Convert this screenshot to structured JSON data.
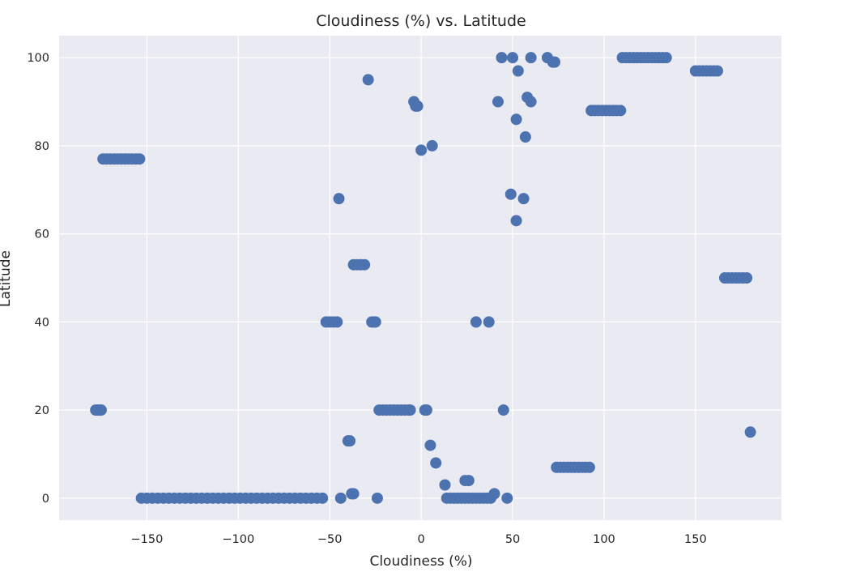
{
  "chart_data": {
    "type": "scatter",
    "title": "Cloudiness (%) vs. Latitude",
    "xlabel": "Cloudiness (%)",
    "ylabel": "Latitude",
    "xlim": [
      -198,
      197
    ],
    "ylim": [
      -5,
      105
    ],
    "xticks": [
      -150,
      -100,
      -50,
      0,
      50,
      100,
      150
    ],
    "xtick_labels": [
      "−150",
      "−100",
      "−50",
      "0",
      "50",
      "100",
      "150"
    ],
    "yticks": [
      0,
      20,
      40,
      60,
      80,
      100
    ],
    "ytick_labels": [
      "0",
      "20",
      "40",
      "60",
      "80",
      "100"
    ],
    "grid": true,
    "colors": {
      "point": "#4c72b0",
      "plot_bg": "#eaeaf2",
      "grid": "#ffffff"
    },
    "series": [
      {
        "points": [
          [
            -178,
            20
          ],
          [
            -177,
            20
          ],
          [
            -176,
            20
          ],
          [
            -175,
            20
          ],
          [
            -174,
            77
          ],
          [
            -172,
            77
          ],
          [
            -170,
            77
          ],
          [
            -168,
            77
          ],
          [
            -166,
            77
          ],
          [
            -164,
            77
          ],
          [
            -162,
            77
          ],
          [
            -160,
            77
          ],
          [
            -158,
            77
          ],
          [
            -156,
            77
          ],
          [
            -154,
            77
          ],
          [
            -153,
            0
          ],
          [
            -150,
            0
          ],
          [
            -147,
            0
          ],
          [
            -144,
            0
          ],
          [
            -141,
            0
          ],
          [
            -138,
            0
          ],
          [
            -135,
            0
          ],
          [
            -132,
            0
          ],
          [
            -129,
            0
          ],
          [
            -126,
            0
          ],
          [
            -123,
            0
          ],
          [
            -120,
            0
          ],
          [
            -117,
            0
          ],
          [
            -114,
            0
          ],
          [
            -111,
            0
          ],
          [
            -108,
            0
          ],
          [
            -105,
            0
          ],
          [
            -102,
            0
          ],
          [
            -99,
            0
          ],
          [
            -96,
            0
          ],
          [
            -93,
            0
          ],
          [
            -90,
            0
          ],
          [
            -87,
            0
          ],
          [
            -84,
            0
          ],
          [
            -81,
            0
          ],
          [
            -78,
            0
          ],
          [
            -75,
            0
          ],
          [
            -72,
            0
          ],
          [
            -69,
            0
          ],
          [
            -66,
            0
          ],
          [
            -63,
            0
          ],
          [
            -60,
            0
          ],
          [
            -57,
            0
          ],
          [
            -54,
            0
          ],
          [
            -52,
            40
          ],
          [
            -50,
            40
          ],
          [
            -48,
            40
          ],
          [
            -46,
            40
          ],
          [
            -45,
            68
          ],
          [
            -44,
            0
          ],
          [
            -40,
            13
          ],
          [
            -39,
            13
          ],
          [
            -38,
            1
          ],
          [
            -37,
            1
          ],
          [
            -37,
            53
          ],
          [
            -35,
            53
          ],
          [
            -33,
            53
          ],
          [
            -31,
            53
          ],
          [
            -29,
            95
          ],
          [
            -27,
            40
          ],
          [
            -26,
            40
          ],
          [
            -25,
            40
          ],
          [
            -24,
            0
          ],
          [
            -23,
            20
          ],
          [
            -21,
            20
          ],
          [
            -19,
            20
          ],
          [
            -17,
            20
          ],
          [
            -15,
            20
          ],
          [
            -13,
            20
          ],
          [
            -11,
            20
          ],
          [
            -9,
            20
          ],
          [
            -7,
            20
          ],
          [
            -6,
            20
          ],
          [
            -4,
            90
          ],
          [
            -3,
            89
          ],
          [
            -2,
            89
          ],
          [
            0,
            79
          ],
          [
            2,
            20
          ],
          [
            3,
            20
          ],
          [
            5,
            12
          ],
          [
            6,
            80
          ],
          [
            8,
            8
          ],
          [
            13,
            3
          ],
          [
            14,
            0
          ],
          [
            16,
            0
          ],
          [
            18,
            0
          ],
          [
            20,
            0
          ],
          [
            22,
            0
          ],
          [
            24,
            0
          ],
          [
            26,
            0
          ],
          [
            28,
            0
          ],
          [
            30,
            0
          ],
          [
            32,
            0
          ],
          [
            34,
            0
          ],
          [
            36,
            0
          ],
          [
            38,
            0
          ],
          [
            40,
            1
          ],
          [
            24,
            4
          ],
          [
            26,
            4
          ],
          [
            30,
            40
          ],
          [
            37,
            40
          ],
          [
            42,
            90
          ],
          [
            44,
            100
          ],
          [
            45,
            20
          ],
          [
            47,
            0
          ],
          [
            49,
            69
          ],
          [
            50,
            100
          ],
          [
            52,
            86
          ],
          [
            52,
            63
          ],
          [
            53,
            97
          ],
          [
            56,
            68
          ],
          [
            57,
            82
          ],
          [
            58,
            91
          ],
          [
            60,
            90
          ],
          [
            60,
            100
          ],
          [
            69,
            100
          ],
          [
            72,
            99
          ],
          [
            73,
            99
          ],
          [
            74,
            7
          ],
          [
            76,
            7
          ],
          [
            78,
            7
          ],
          [
            80,
            7
          ],
          [
            82,
            7
          ],
          [
            84,
            7
          ],
          [
            86,
            7
          ],
          [
            88,
            7
          ],
          [
            90,
            7
          ],
          [
            92,
            7
          ],
          [
            93,
            88
          ],
          [
            95,
            88
          ],
          [
            97,
            88
          ],
          [
            99,
            88
          ],
          [
            101,
            88
          ],
          [
            103,
            88
          ],
          [
            105,
            88
          ],
          [
            107,
            88
          ],
          [
            109,
            88
          ],
          [
            110,
            100
          ],
          [
            112,
            100
          ],
          [
            114,
            100
          ],
          [
            116,
            100
          ],
          [
            118,
            100
          ],
          [
            120,
            100
          ],
          [
            122,
            100
          ],
          [
            124,
            100
          ],
          [
            126,
            100
          ],
          [
            128,
            100
          ],
          [
            130,
            100
          ],
          [
            132,
            100
          ],
          [
            134,
            100
          ],
          [
            150,
            97
          ],
          [
            152,
            97
          ],
          [
            154,
            97
          ],
          [
            156,
            97
          ],
          [
            158,
            97
          ],
          [
            160,
            97
          ],
          [
            162,
            97
          ],
          [
            166,
            50
          ],
          [
            168,
            50
          ],
          [
            170,
            50
          ],
          [
            172,
            50
          ],
          [
            174,
            50
          ],
          [
            176,
            50
          ],
          [
            178,
            50
          ],
          [
            180,
            15
          ]
        ]
      }
    ]
  }
}
